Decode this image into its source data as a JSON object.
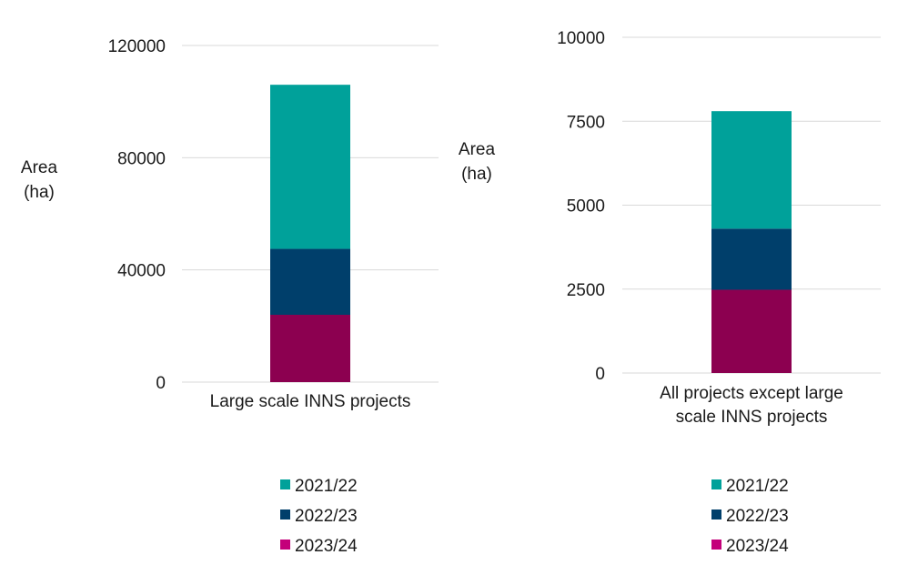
{
  "chart_data": [
    {
      "type": "bar",
      "stacked": true,
      "ylabel": [
        "Area",
        "(ha)"
      ],
      "categories": [
        "Large scale INNS projects"
      ],
      "category_label_lines": [
        "Large scale INNS projects"
      ],
      "ylim": [
        0,
        120000
      ],
      "yticks": [
        0,
        40000,
        80000,
        120000
      ],
      "grid": true,
      "legend_position": "bottom",
      "series": [
        {
          "name": "2023/24",
          "values": [
            24000
          ]
        },
        {
          "name": "2022/23",
          "values": [
            23500
          ]
        },
        {
          "name": "2021/22",
          "values": [
            58500
          ]
        }
      ],
      "legend": [
        "2021/22",
        "2022/23",
        "2023/24"
      ]
    },
    {
      "type": "bar",
      "stacked": true,
      "ylabel": [
        "Area",
        "(ha)"
      ],
      "categories": [
        "All projects except large scale INNS projects"
      ],
      "category_label_lines": [
        "All projects except large",
        "scale INNS projects"
      ],
      "ylim": [
        0,
        10000
      ],
      "yticks": [
        0,
        2500,
        5000,
        7500,
        10000
      ],
      "grid": true,
      "legend_position": "bottom",
      "series": [
        {
          "name": "2023/24",
          "values": [
            2480
          ]
        },
        {
          "name": "2022/23",
          "values": [
            1820
          ]
        },
        {
          "name": "2021/22",
          "values": [
            3500
          ]
        }
      ],
      "legend": [
        "2021/22",
        "2022/23",
        "2023/24"
      ]
    }
  ],
  "colors": {
    "2021/22": "#00a19a",
    "2022/23": "#003f6b",
    "2023/24": "#8c0050",
    "legend_2023/24": "#c4007a",
    "grid": "#d9d9d9"
  }
}
